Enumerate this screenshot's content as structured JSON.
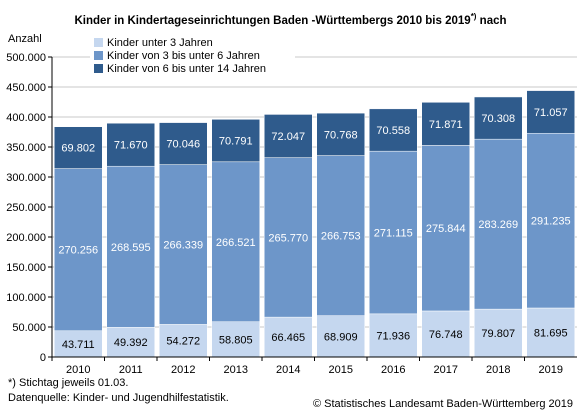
{
  "header": {
    "title": "Kinder in Kindertageseinrichtungen Baden -Württembergs 2010 bis 2019",
    "title_marker": "*)",
    "title_suffix": " nach"
  },
  "footer": {
    "footnote": "*) Stichtag jeweils 01.03.",
    "source": "Datenquelle: Kinder- und Jugendhilfestatistik.",
    "copyright": "© Statistisches Landesamt Baden-Württemberg 2019"
  },
  "chart_data": {
    "type": "bar",
    "stacked": true,
    "ylabel": "Anzahl",
    "ylim": [
      0,
      500000
    ],
    "ytick_step": 50000,
    "grid": true,
    "legend_placement": "top-left",
    "categories": [
      "2010",
      "2011",
      "2012",
      "2013",
      "2014",
      "2015",
      "2016",
      "2017",
      "2018",
      "2019"
    ],
    "series": [
      {
        "name": "Kinder unter 3 Jahren",
        "color": "#c5d7ef",
        "values": [
          43711,
          49392,
          54272,
          58805,
          66465,
          68909,
          71936,
          76748,
          79807,
          81695
        ],
        "labels": [
          "43.711",
          "49.392",
          "54.272",
          "58.805",
          "66.465",
          "68.909",
          "71.936",
          "76.748",
          "79.807",
          "81.695"
        ]
      },
      {
        "name": "Kinder von 3 bis unter 6 Jahren",
        "color": "#6d96c9",
        "values": [
          270256,
          268595,
          266339,
          266521,
          265770,
          266753,
          271115,
          275844,
          283269,
          291235
        ],
        "labels": [
          "270.256",
          "268.595",
          "266.339",
          "266.521",
          "265.770",
          "266.753",
          "271.115",
          "275.844",
          "283.269",
          "291.235"
        ]
      },
      {
        "name": "Kinder von 6 bis unter 14 Jahren",
        "color": "#2f5b8c",
        "values": [
          69802,
          71670,
          70046,
          70791,
          72047,
          70768,
          70558,
          71871,
          70308,
          71057
        ],
        "labels": [
          "69.802",
          "71.670",
          "70.046",
          "70.791",
          "72.047",
          "70.768",
          "70.558",
          "71.871",
          "70.308",
          "71.057"
        ]
      }
    ],
    "ytick_labels": [
      "0",
      "50.000",
      "100.000",
      "150.000",
      "200.000",
      "250.000",
      "300.000",
      "350.000",
      "400.000",
      "450.000",
      "500.000"
    ]
  }
}
